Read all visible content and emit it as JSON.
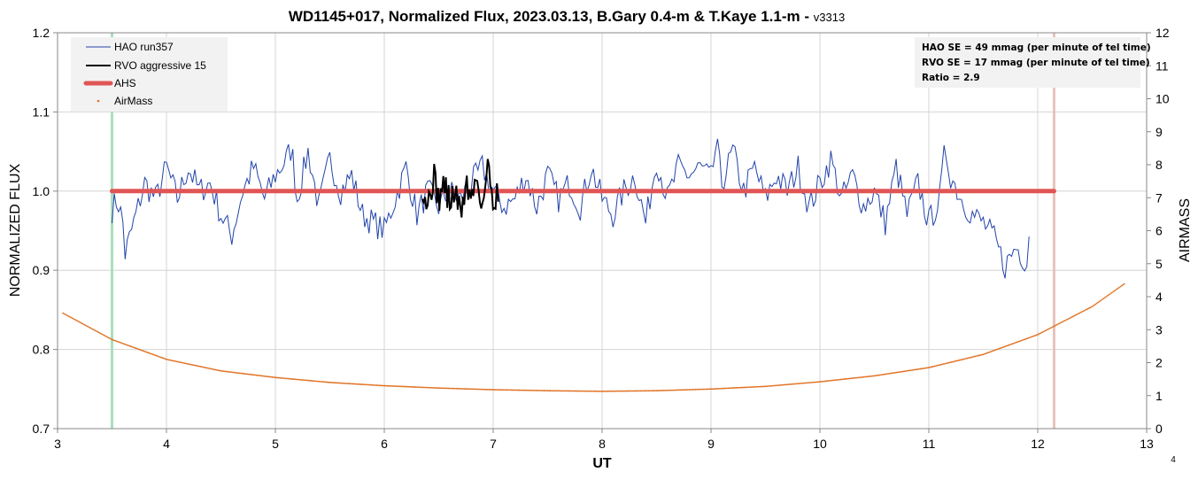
{
  "chart_data": {
    "type": "line",
    "title": "WD1145+017, Normalized Flux, 2023.03.13, B.Gary 0.4-m & T.Kaye 1.1-m",
    "title_suffix": "v3313",
    "xlabel": "UT",
    "ylabel_left": "NORMALIZED FLUX",
    "ylabel_right": "AIRMASS",
    "xlim": [
      3,
      13
    ],
    "ylim_left": [
      0.7,
      1.2
    ],
    "ylim_right": [
      0,
      12
    ],
    "x_ticks": [
      "3",
      "4",
      "5",
      "6",
      "7",
      "8",
      "9",
      "10",
      "11",
      "12",
      "13"
    ],
    "y_left_ticks": [
      "0.7",
      "0.8",
      "0.9",
      "1.0",
      "1.1",
      "1.2"
    ],
    "y_right_ticks": [
      "0",
      "1",
      "2",
      "3",
      "4",
      "5",
      "6",
      "7",
      "8",
      "9",
      "10",
      "11",
      "12"
    ],
    "grid": true,
    "legend_position": "top-left",
    "legend": [
      {
        "name": "HAO run357",
        "color": "#2244aa",
        "style": "thin-line"
      },
      {
        "name": "RVO aggressive 15",
        "color": "#000000",
        "style": "line"
      },
      {
        "name": "AHS",
        "color": "#e05555",
        "style": "thick-line"
      },
      {
        "name": "AirMass",
        "color": "#e07020",
        "style": "marker"
      }
    ],
    "stats_box": [
      "HAO SE = 49 mmag (per minute of tel time)",
      "RVO SE = 17 mmag (per minute of tel time)",
      "Ratio = 2.9"
    ],
    "vertical_markers": [
      {
        "x": 3.5,
        "color": "#a8e0bb"
      },
      {
        "x": 12.15,
        "color": "#e8c2bd"
      }
    ],
    "series": [
      {
        "name": "HAO run357",
        "axis": "left",
        "color": "#2244aa",
        "x_range": [
          3.5,
          11.92
        ],
        "points": [
          [
            3.5,
            0.977
          ],
          [
            3.55,
            0.99
          ],
          [
            3.6,
            0.96
          ],
          [
            3.62,
            0.92
          ],
          [
            3.7,
            0.96
          ],
          [
            3.8,
            1.01
          ],
          [
            3.9,
            0.99
          ],
          [
            4.0,
            1.03
          ],
          [
            4.1,
            0.99
          ],
          [
            4.2,
            1.03
          ],
          [
            4.3,
            1.0
          ],
          [
            4.4,
            1.01
          ],
          [
            4.5,
            0.97
          ],
          [
            4.6,
            0.944
          ],
          [
            4.7,
            1.0
          ],
          [
            4.8,
            1.03
          ],
          [
            4.9,
            0.99
          ],
          [
            5.0,
            1.02
          ],
          [
            5.1,
            1.04
          ],
          [
            5.15,
            1.055
          ],
          [
            5.2,
            0.99
          ],
          [
            5.3,
            1.05
          ],
          [
            5.4,
            0.98
          ],
          [
            5.5,
            1.04
          ],
          [
            5.6,
            1.0
          ],
          [
            5.7,
            1.02
          ],
          [
            5.8,
            0.97
          ],
          [
            5.9,
            0.96
          ],
          [
            6.0,
            0.95
          ],
          [
            6.1,
            0.99
          ],
          [
            6.2,
            1.03
          ],
          [
            6.3,
            0.97
          ],
          [
            6.4,
            1.0
          ],
          [
            6.5,
            0.98
          ],
          [
            6.6,
            1.0
          ],
          [
            6.7,
            0.99
          ],
          [
            6.8,
            1.01
          ],
          [
            6.9,
            1.03
          ],
          [
            7.0,
            1.0
          ],
          [
            7.1,
            0.98
          ],
          [
            7.2,
            0.99
          ],
          [
            7.3,
            1.02
          ],
          [
            7.4,
            0.98
          ],
          [
            7.5,
            1.02
          ],
          [
            7.6,
            0.99
          ],
          [
            7.7,
            1.01
          ],
          [
            7.8,
            0.98
          ],
          [
            7.9,
            1.03
          ],
          [
            8.0,
            0.99
          ],
          [
            8.1,
            0.97
          ],
          [
            8.2,
            1.0
          ],
          [
            8.3,
            1.02
          ],
          [
            8.4,
            0.96
          ],
          [
            8.5,
            1.04
          ],
          [
            8.6,
            0.99
          ],
          [
            8.7,
            1.03
          ],
          [
            8.8,
            1.02
          ],
          [
            8.9,
            1.03
          ],
          [
            9.0,
            1.015
          ],
          [
            9.05,
            1.06
          ],
          [
            9.1,
            1.01
          ],
          [
            9.2,
            1.05
          ],
          [
            9.3,
            1.0
          ],
          [
            9.4,
            1.03
          ],
          [
            9.5,
            0.99
          ],
          [
            9.6,
            1.02
          ],
          [
            9.7,
            1.0
          ],
          [
            9.8,
            1.03
          ],
          [
            9.9,
            0.98
          ],
          [
            10.0,
            1.01
          ],
          [
            10.1,
            1.04
          ],
          [
            10.2,
            0.99
          ],
          [
            10.3,
            1.02
          ],
          [
            10.4,
            0.98
          ],
          [
            10.5,
            1.0
          ],
          [
            10.6,
            0.96
          ],
          [
            10.7,
            1.03
          ],
          [
            10.8,
            0.97
          ],
          [
            10.9,
            1.01
          ],
          [
            11.0,
            0.96
          ],
          [
            11.1,
            0.99
          ],
          [
            11.15,
            1.055
          ],
          [
            11.2,
            1.02
          ],
          [
            11.3,
            0.99
          ],
          [
            11.4,
            0.97
          ],
          [
            11.5,
            0.96
          ],
          [
            11.6,
            0.94
          ],
          [
            11.7,
            0.905
          ],
          [
            11.8,
            0.93
          ],
          [
            11.9,
            0.91
          ],
          [
            11.92,
            0.948
          ]
        ]
      },
      {
        "name": "RVO aggressive 15",
        "axis": "left",
        "color": "#000000",
        "x_range": [
          6.35,
          7.05
        ],
        "points": [
          [
            6.35,
            1.01
          ],
          [
            6.4,
            0.98
          ],
          [
            6.45,
            1.02
          ],
          [
            6.5,
            0.99
          ],
          [
            6.55,
            1.01
          ],
          [
            6.6,
            0.985
          ],
          [
            6.65,
            1.0
          ],
          [
            6.7,
            0.97
          ],
          [
            6.75,
            1.01
          ],
          [
            6.8,
            0.99
          ],
          [
            6.85,
            1.02
          ],
          [
            6.9,
            0.98
          ],
          [
            6.95,
            1.03
          ],
          [
            7.0,
            0.99
          ],
          [
            7.05,
            1.0
          ]
        ]
      },
      {
        "name": "AHS",
        "axis": "left",
        "color": "#e05555",
        "x": [
          3.5,
          12.15
        ],
        "y": [
          1.0,
          1.0
        ]
      },
      {
        "name": "AirMass",
        "axis": "right",
        "color": "#e07020",
        "x": [
          3.05,
          3.5,
          4.0,
          4.5,
          5.0,
          5.5,
          6.0,
          6.5,
          7.0,
          7.5,
          8.0,
          8.5,
          9.0,
          9.5,
          10.0,
          10.5,
          11.0,
          11.5,
          12.0,
          12.5,
          12.8
        ],
        "y": [
          3.5,
          2.7,
          2.1,
          1.75,
          1.55,
          1.4,
          1.3,
          1.23,
          1.18,
          1.15,
          1.13,
          1.15,
          1.2,
          1.28,
          1.42,
          1.6,
          1.85,
          2.25,
          2.85,
          3.7,
          4.4
        ]
      }
    ]
  },
  "corner_label": "4"
}
